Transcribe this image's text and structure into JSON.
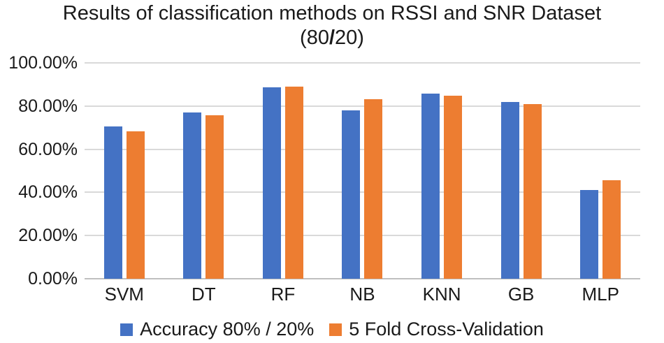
{
  "chart": {
    "title": "Results of classification methods on RSSI and SNR Dataset",
    "subtitle_pre": "(80",
    "subtitle_slash": "/",
    "subtitle_post": "20)"
  },
  "chart_data": {
    "type": "bar",
    "title": "Results of classification methods on RSSI and SNR Dataset (80/20)",
    "categories": [
      "SVM",
      "DT",
      "RF",
      "NB",
      "KNN",
      "GB",
      "MLP"
    ],
    "series": [
      {
        "name": "Accuracy 80% / 20%",
        "color": "#4472C4",
        "values": [
          70.6,
          77.1,
          88.6,
          78.1,
          85.8,
          81.9,
          41.2
        ]
      },
      {
        "name": "5 Fold Cross-Validation",
        "color": "#ED7D31",
        "values": [
          68.4,
          75.8,
          89.1,
          83.2,
          84.9,
          81.0,
          45.5
        ]
      }
    ],
    "xlabel": "",
    "ylabel": "",
    "ylim": [
      0,
      100
    ],
    "yticks": [
      0,
      20,
      40,
      60,
      80,
      100
    ],
    "ytick_labels": [
      "0.00%",
      "20.00%",
      "40.00%",
      "60.00%",
      "80.00%",
      "100.00%"
    ],
    "grid": true,
    "legend_position": "bottom"
  },
  "colors": {
    "gridline": "#D9D9D9",
    "axis_line": "#BFBFBF",
    "text": "#1A1A1A",
    "background": "#FFFFFF"
  }
}
